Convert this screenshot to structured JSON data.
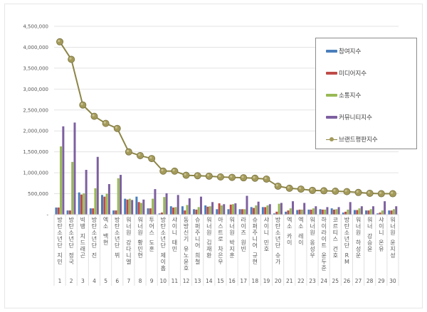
{
  "chart_data": {
    "type": "bar+line",
    "title": "",
    "xlabel": "",
    "ylabel": "",
    "ylim": [
      0,
      4500000
    ],
    "yticks": [
      "-",
      "500,000",
      "1,000,000",
      "1,500,000",
      "2,000,000",
      "2,500,000",
      "3,000,000",
      "3,500,000",
      "4,000,000",
      "4,500,000"
    ],
    "grid": true,
    "legend_position": "right",
    "categories": [
      "방탄소년단 지민",
      "방탄소년단 정국",
      "빅뱅 지드래곤",
      "방탄소년단 진",
      "엑소 백현",
      "방탄소년단 뷔",
      "워너원 강다니엘",
      "워너원 황민현",
      "투어스 도훈",
      "방탄소년단 제이홉",
      "샤이니 태민",
      "동방신기 유노윤호",
      "슈퍼주니어 희철",
      "워너원 김재환",
      "아스트로 차은우",
      "워너원 박지훈",
      "라이즈 원빈",
      "슈퍼주니어 규현",
      "샤이니 민호",
      "방탄소년단 슈가",
      "엑소 카이",
      "엑소 레이",
      "워너원 옹성우",
      "하이라이트 윤두준",
      "코르티스 건호",
      "방탄소년단 RM",
      "워너원 하성운",
      "워너 강승윤",
      "샤이니 온유",
      "워너원 윤지성"
    ],
    "ranks": [
      "1",
      "2",
      "3",
      "4",
      "5",
      "6",
      "7",
      "8",
      "9",
      "10",
      "11",
      "12",
      "13",
      "14",
      "15",
      "16",
      "17",
      "18",
      "19",
      "20",
      "21",
      "22",
      "23",
      "24",
      "25",
      "26",
      "27",
      "28",
      "29",
      "30"
    ],
    "series": [
      {
        "name": "참여지수",
        "type": "bar",
        "color": "#4a7ebb",
        "values": [
          170000,
          100000,
          530000,
          150000,
          470000,
          100000,
          380000,
          430000,
          150000,
          30000,
          200000,
          200000,
          130000,
          220000,
          130000,
          130000,
          130000,
          180000,
          180000,
          30000,
          70000,
          110000,
          120000,
          130000,
          150000,
          50000,
          110000,
          100000,
          30000,
          100000
        ]
      },
      {
        "name": "미디어지수",
        "type": "bar",
        "color": "#be4b48",
        "values": [
          170000,
          100000,
          480000,
          150000,
          430000,
          100000,
          360000,
          300000,
          150000,
          50000,
          170000,
          100000,
          120000,
          190000,
          270000,
          240000,
          130000,
          160000,
          180000,
          70000,
          100000,
          120000,
          120000,
          120000,
          120000,
          70000,
          110000,
          100000,
          50000,
          100000
        ]
      },
      {
        "name": "소통지수",
        "type": "bar",
        "color": "#98b954",
        "values": [
          1630000,
          1260000,
          510000,
          630000,
          500000,
          870000,
          380000,
          280000,
          380000,
          420000,
          180000,
          230000,
          180000,
          200000,
          220000,
          250000,
          130000,
          220000,
          220000,
          260000,
          150000,
          120000,
          150000,
          120000,
          130000,
          120000,
          150000,
          130000,
          100000,
          130000
        ]
      },
      {
        "name": "커뮤니티지수",
        "type": "bar",
        "color": "#7d60a0",
        "values": [
          2110000,
          2200000,
          1070000,
          1380000,
          730000,
          950000,
          350000,
          360000,
          610000,
          510000,
          470000,
          390000,
          430000,
          300000,
          250000,
          270000,
          450000,
          310000,
          250000,
          280000,
          320000,
          280000,
          200000,
          180000,
          180000,
          300000,
          200000,
          200000,
          320000,
          200000
        ]
      },
      {
        "name": "브랜드평판지수",
        "type": "line",
        "color": "#8c8547",
        "values": [
          4130000,
          3710000,
          2620000,
          2350000,
          2180000,
          2060000,
          1500000,
          1410000,
          1340000,
          1040000,
          1040000,
          940000,
          930000,
          920000,
          900000,
          890000,
          880000,
          870000,
          850000,
          680000,
          630000,
          610000,
          580000,
          570000,
          560000,
          550000,
          530000,
          510000,
          500000,
          500000
        ]
      }
    ]
  },
  "legend": {
    "items": [
      {
        "label": "참여지수",
        "kind": "bar",
        "color": "#4a7ebb"
      },
      {
        "label": "미디어지수",
        "kind": "bar",
        "color": "#be4b48"
      },
      {
        "label": "소통지수",
        "kind": "bar",
        "color": "#98b954"
      },
      {
        "label": "커뮤니티지수",
        "kind": "bar",
        "color": "#7d60a0"
      },
      {
        "label": "브랜드평판지수",
        "kind": "line",
        "color": "#8c8547"
      }
    ]
  }
}
